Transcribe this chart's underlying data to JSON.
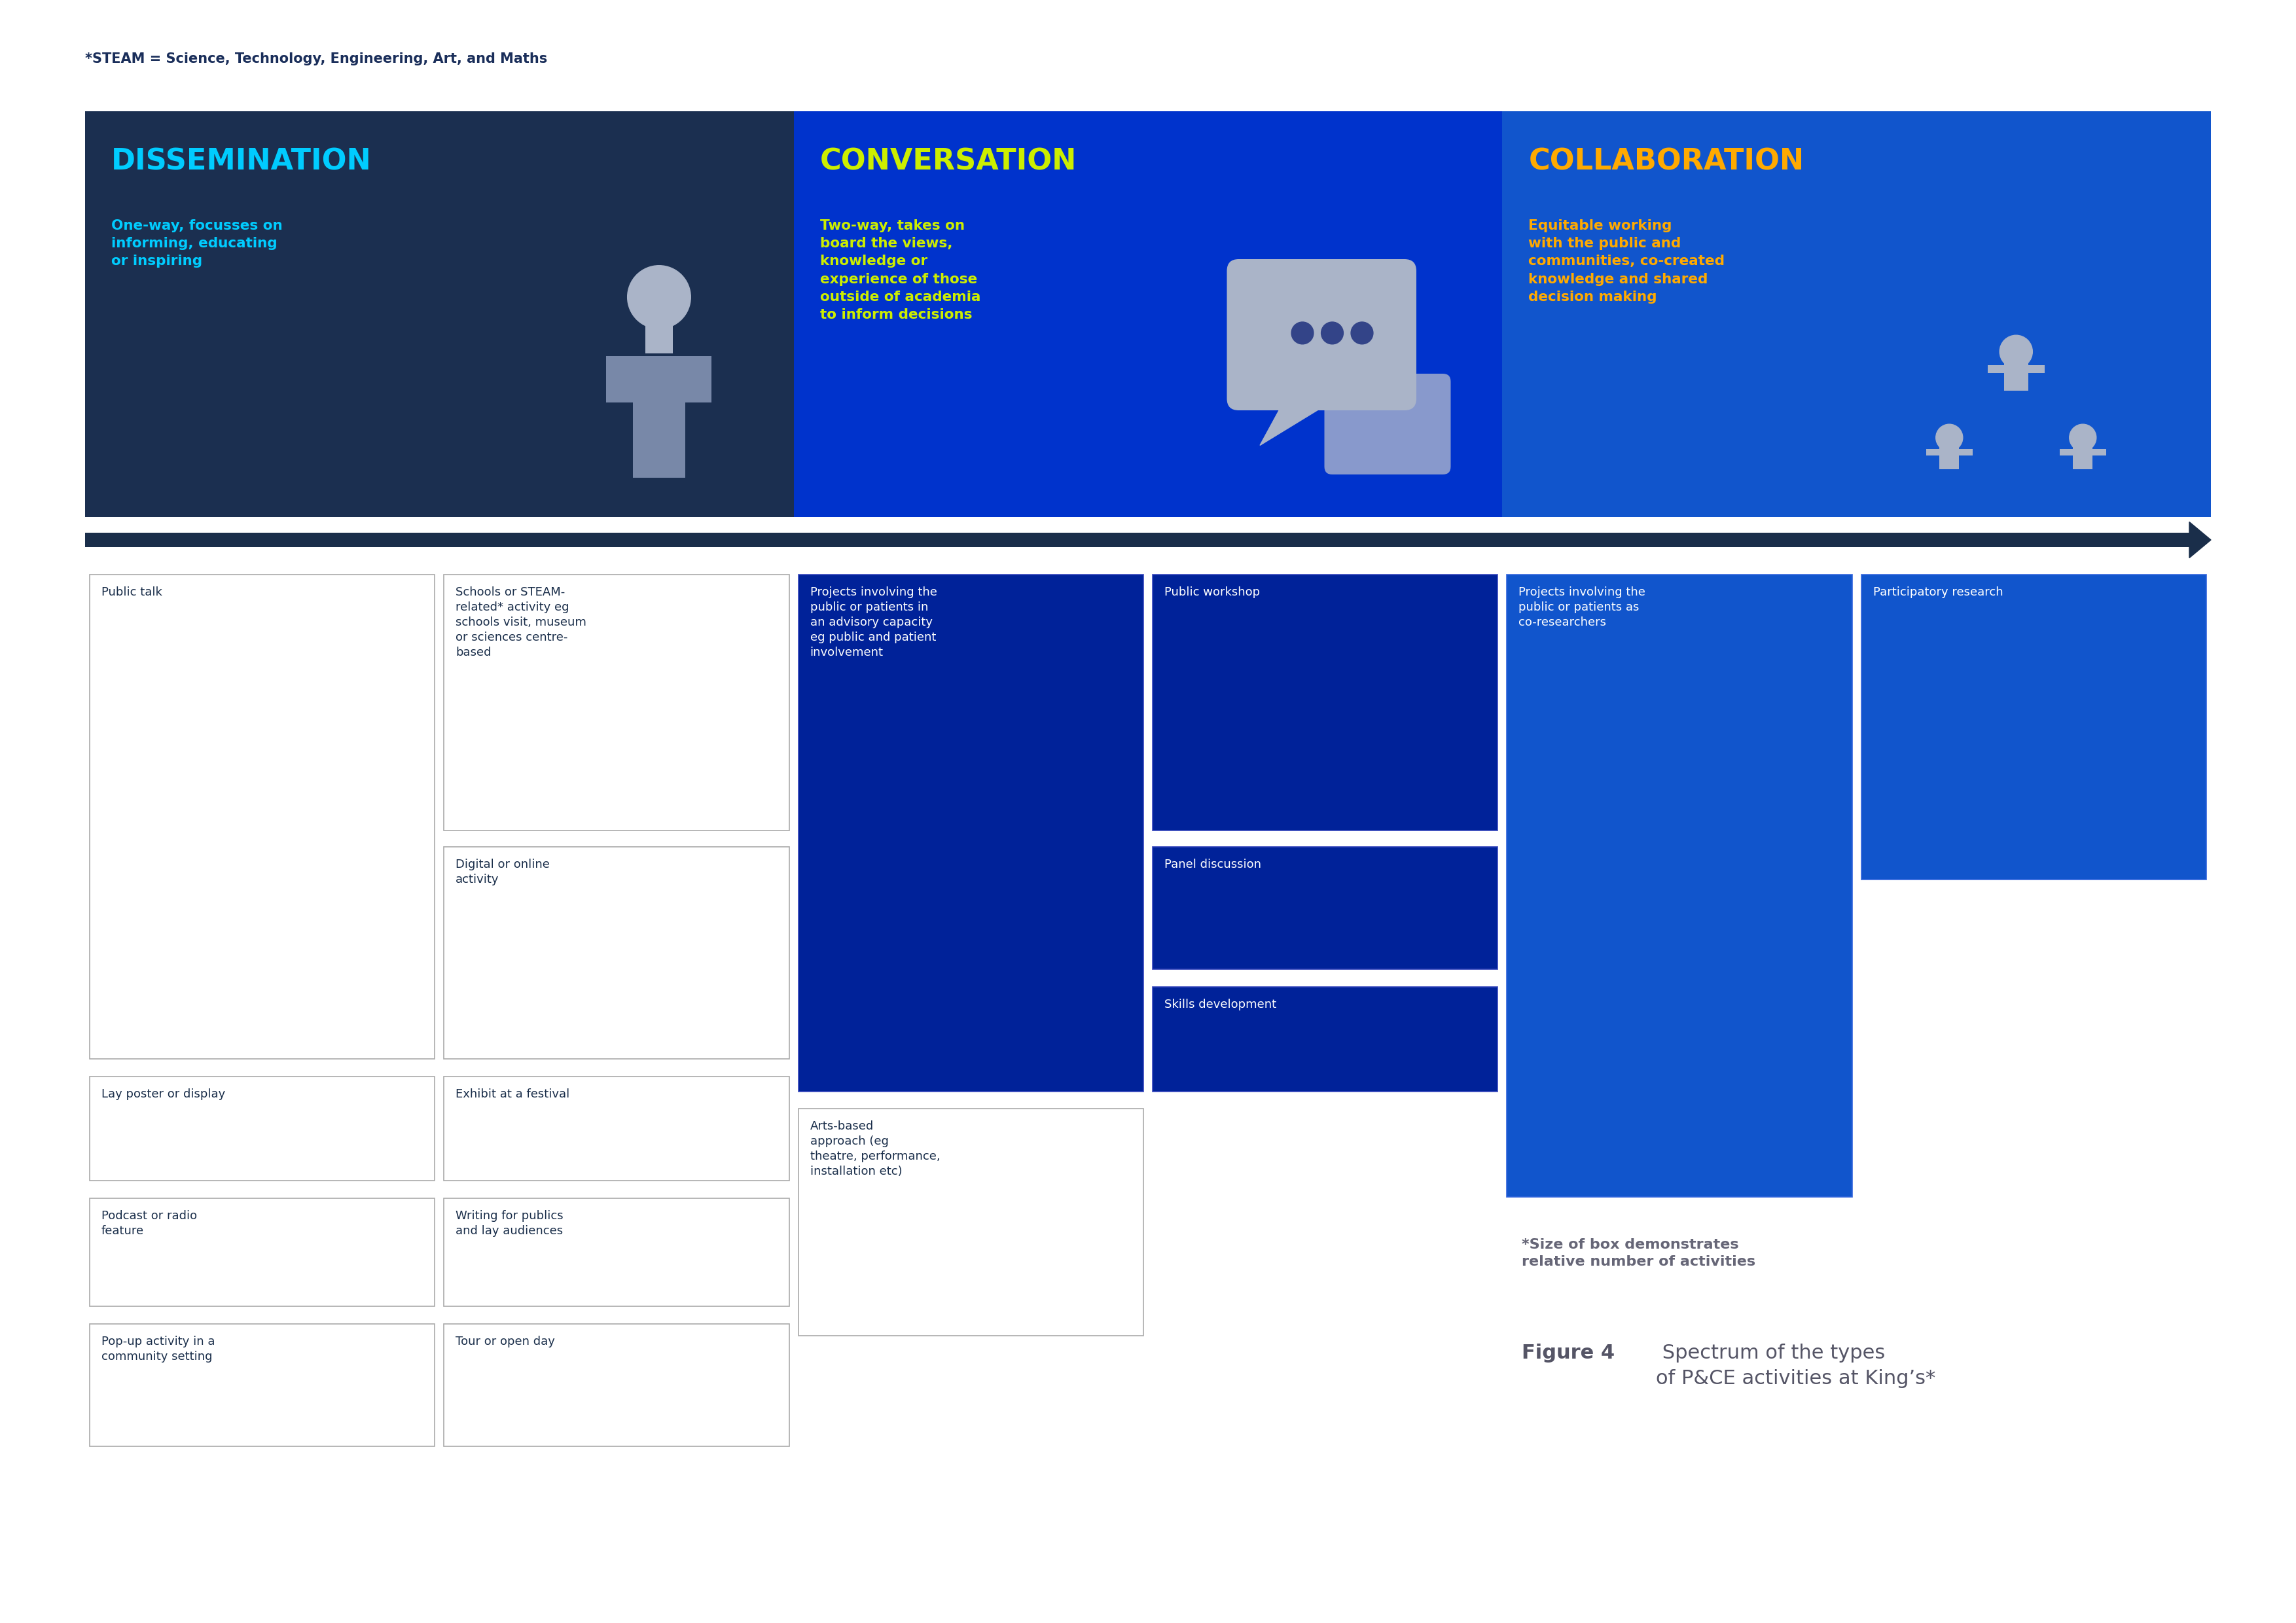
{
  "bg_color": "#ffffff",
  "steam_note": "*STEAM = Science, Technology, Engineering, Art, and Maths",
  "steam_color": "#1a2e5a",
  "categories": [
    {
      "title": "DISSEMINATION",
      "title_color": "#00ccff",
      "bg_color": "#1b2f50",
      "desc": "One-way, focusses on\ninforming, educating\nor inspiring",
      "desc_color": "#00ccff"
    },
    {
      "title": "CONVERSATION",
      "title_color": "#ccee00",
      "bg_color": "#0033cc",
      "desc": "Two-way, takes on\nboard the views,\nknowledge or\nexperience of those\noutside of academia\nto inform decisions",
      "desc_color": "#ccee00"
    },
    {
      "title": "COLLABORATION",
      "title_color": "#ffaa00",
      "bg_color": "#1155cc",
      "desc": "Equitable working\nwith the public and\ncommunities, co-created\nknowledge and shared\ndecision making",
      "desc_color": "#ffaa00"
    }
  ],
  "arrow_color": "#1a2e4a",
  "size_note": "*Size of box demonstrates\nrelative number of activities",
  "size_note_color": "#666677",
  "figure_bold": "Figure 4",
  "figure_normal": " Spectrum of the types\nof P&CE activities at King’s*",
  "figure_color": "#555566"
}
